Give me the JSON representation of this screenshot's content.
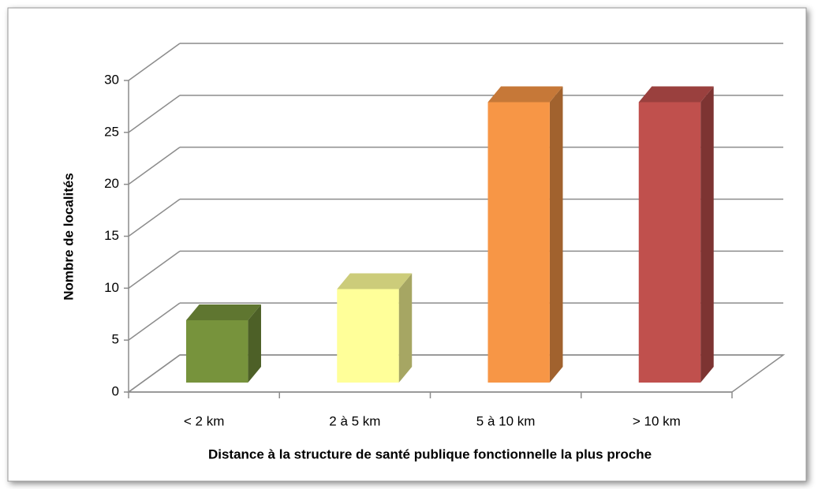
{
  "chart_data": {
    "type": "bar3d",
    "x_label": "Distance à la structure de santé publique fonctionnelle la plus proche",
    "y_label": "Nombre de localités",
    "categories": [
      "< 2 km",
      "2 à 5 km",
      "5 à 10 km",
      "> 10 km"
    ],
    "values": [
      6,
      9,
      27,
      27
    ],
    "colors": [
      "#77933c",
      "#ffff99",
      "#f79646",
      "#c0504d"
    ],
    "ylim": [
      0,
      30
    ],
    "yticks": [
      0,
      5,
      10,
      15,
      20,
      25,
      30
    ],
    "grid": true
  }
}
